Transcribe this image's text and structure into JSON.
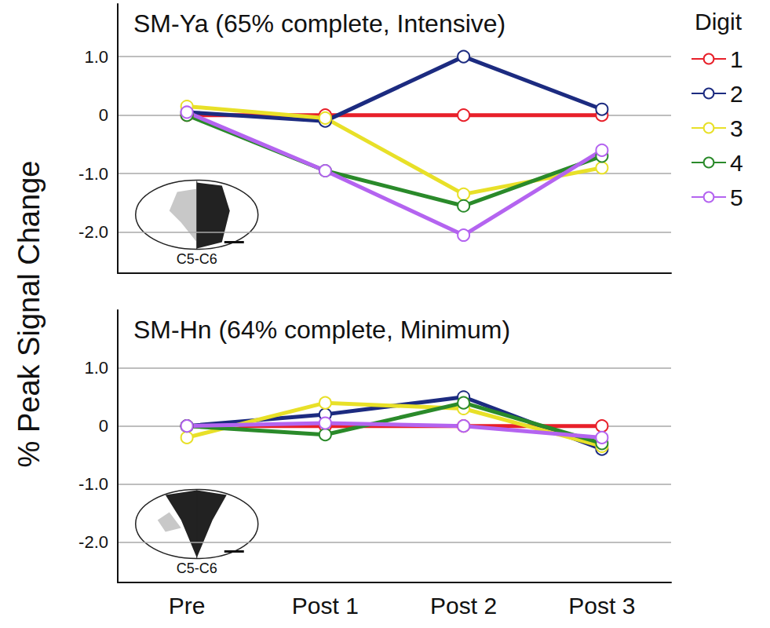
{
  "ylabel": "% Peak Signal Change",
  "legend_title": "Digit",
  "legend": "right",
  "chart_data": [
    {
      "type": "line",
      "title": "SM-Ya (65% complete, Intensive)",
      "inset_label": "C5-C6",
      "categories": [
        "Pre",
        "Post 1",
        "Post 2",
        "Post 3"
      ],
      "series": [
        {
          "name": "1",
          "color": "#e8202a",
          "values": [
            0,
            0,
            0,
            0
          ]
        },
        {
          "name": "2",
          "color": "#1c2b80",
          "values": [
            0.05,
            -0.1,
            1.0,
            0.1
          ]
        },
        {
          "name": "3",
          "color": "#e8e028",
          "values": [
            0.15,
            -0.05,
            -1.35,
            -0.9
          ]
        },
        {
          "name": "4",
          "color": "#2a8a2a",
          "values": [
            0.0,
            -0.95,
            -1.55,
            -0.7
          ]
        },
        {
          "name": "5",
          "color": "#b464f0",
          "values": [
            0.05,
            -0.95,
            -2.05,
            -0.6
          ]
        }
      ],
      "ylim": [
        -2.7,
        1.9
      ],
      "yticks": [
        {
          "value": -2,
          "label": "-2.0"
        },
        {
          "value": -1,
          "label": "-1.0"
        },
        0,
        {
          "value": 1,
          "label": "1.0"
        }
      ],
      "grid": true,
      "tick_labels": "y",
      "marker": "circle",
      "line_style": "solid"
    },
    {
      "type": "line",
      "title": "SM-Hn (64% complete, Minimum)",
      "inset_label": "C5-C6",
      "categories": [
        "Pre",
        "Post 1",
        "Post 2",
        "Post 3"
      ],
      "series": [
        {
          "name": "1",
          "color": "#e8202a",
          "values": [
            0,
            0,
            0,
            0
          ]
        },
        {
          "name": "2",
          "color": "#1c2b80",
          "values": [
            0.0,
            0.2,
            0.5,
            -0.4
          ]
        },
        {
          "name": "3",
          "color": "#e8e028",
          "values": [
            -0.2,
            0.4,
            0.3,
            -0.35
          ]
        },
        {
          "name": "4",
          "color": "#2a8a2a",
          "values": [
            0.0,
            -0.15,
            0.4,
            -0.3
          ]
        },
        {
          "name": "5",
          "color": "#b464f0",
          "values": [
            0.0,
            0.05,
            0.0,
            -0.2
          ]
        }
      ],
      "ylim": [
        -2.7,
        2.0
      ],
      "yticks": [
        {
          "value": -2,
          "label": "-2.0"
        },
        {
          "value": -1,
          "label": "-1.0"
        },
        0,
        {
          "value": 1,
          "label": "1.0"
        }
      ],
      "grid": true,
      "tick_labels": true,
      "marker": "circle",
      "line_style": "solid"
    }
  ]
}
